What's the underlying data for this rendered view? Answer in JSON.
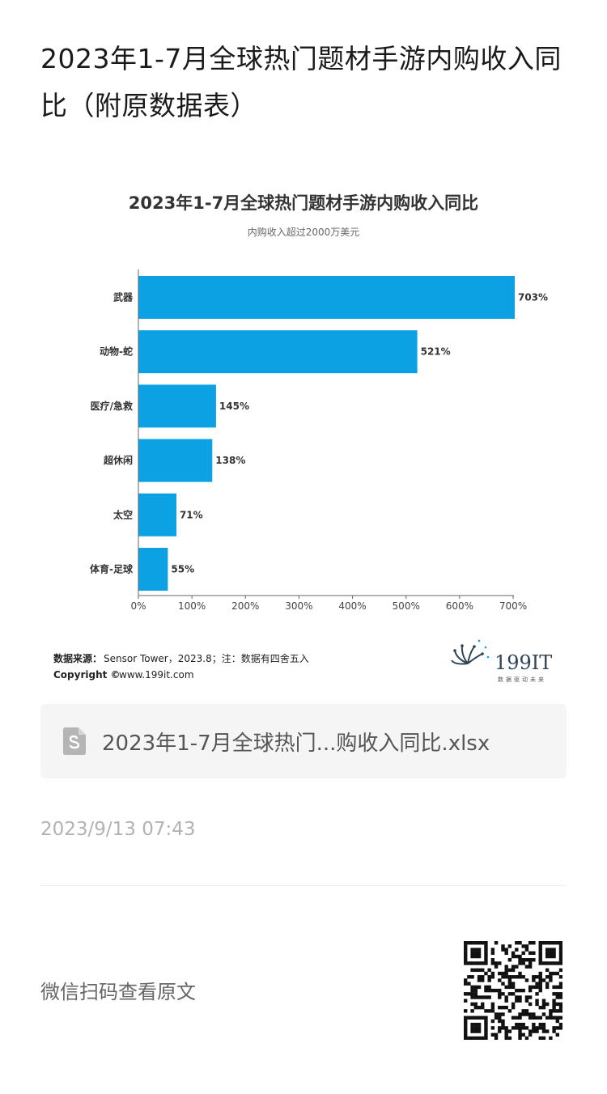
{
  "article": {
    "title": "2023年1-7月全球热门题材手游内购收入同比（附原数据表）"
  },
  "chart_data": {
    "type": "bar",
    "orientation": "horizontal",
    "title": "2023年1-7月全球热门题材手游内购收入同比",
    "subtitle": "内购收入超过2000万美元",
    "categories": [
      "武器",
      "动物-蛇",
      "医疗/急救",
      "超休闲",
      "太空",
      "体育-足球"
    ],
    "values": [
      703,
      521,
      145,
      138,
      71,
      55
    ],
    "value_labels": [
      "703%",
      "521%",
      "145%",
      "138%",
      "71%",
      "55%"
    ],
    "xlim": [
      0,
      700
    ],
    "x_ticks": [
      0,
      100,
      200,
      300,
      400,
      500,
      600,
      700
    ],
    "x_tick_labels": [
      "0%",
      "100%",
      "200%",
      "300%",
      "400%",
      "500%",
      "600%",
      "700%"
    ],
    "bar_color": "#0ba1e3",
    "grid": false,
    "legend": "none"
  },
  "source": {
    "label": "数据来源：",
    "text": "Sensor Tower，2023.8；注：数据有四舍五入",
    "copyright_label": "Copyright ©",
    "copyright_url": "www.199it.com"
  },
  "logo": {
    "brand": "199IT",
    "slogan": "数据驱动未来"
  },
  "attachment": {
    "icon": "spreadsheet-file-icon",
    "name": "2023年1-7月全球热门...购收入同比.xlsx"
  },
  "post": {
    "date": "2023/9/13 07:43"
  },
  "footer": {
    "qr_hint": "微信扫码查看原文",
    "qr_icon": "qr-code-icon"
  }
}
